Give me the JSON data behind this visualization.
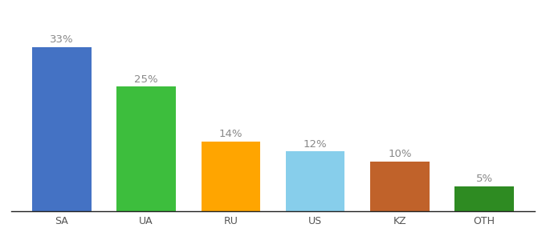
{
  "categories": [
    "SA",
    "UA",
    "RU",
    "US",
    "KZ",
    "OTH"
  ],
  "values": [
    33,
    25,
    14,
    12,
    10,
    5
  ],
  "labels": [
    "33%",
    "25%",
    "14%",
    "12%",
    "10%",
    "5%"
  ],
  "bar_colors": [
    "#4472C4",
    "#3DBE3D",
    "#FFA500",
    "#87CEEB",
    "#C0622A",
    "#2E8B22"
  ],
  "background_color": "#ffffff",
  "label_color": "#888888",
  "label_fontsize": 9.5,
  "tick_fontsize": 9,
  "ylim": [
    0,
    40
  ],
  "bar_width": 0.7
}
